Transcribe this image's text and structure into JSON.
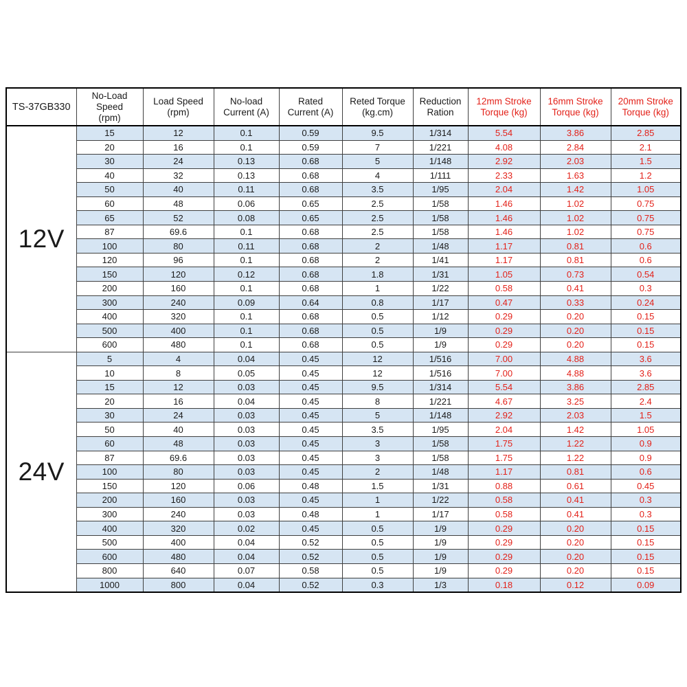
{
  "table": {
    "model": "TS-37GB330",
    "accent_red": "#e32119",
    "stripe_blue": "#d6e5f3",
    "headers": [
      "TS-37GB330",
      "No-Load\nSpeed\n(rpm)",
      "Load Speed\n(rpm)",
      "No-load\nCurrent (A)",
      "Rated\nCurrent (A)",
      "Reted Torque\n(kg.cm)",
      "Reduction\nRation",
      "12mm Stroke\nTorque (kg)",
      "16mm Stroke\nTorque (kg)",
      "20mm Stroke\nTorque (kg)"
    ],
    "red_header_start_index": 7,
    "red_value_start_col": 6,
    "sections": [
      {
        "label": "12V",
        "rows": [
          [
            "15",
            "12",
            "0.1",
            "0.59",
            "9.5",
            "1/314",
            "5.54",
            "3.86",
            "2.85"
          ],
          [
            "20",
            "16",
            "0.1",
            "0.59",
            "7",
            "1/221",
            "4.08",
            "2.84",
            "2.1"
          ],
          [
            "30",
            "24",
            "0.13",
            "0.68",
            "5",
            "1/148",
            "2.92",
            "2.03",
            "1.5"
          ],
          [
            "40",
            "32",
            "0.13",
            "0.68",
            "4",
            "1/111",
            "2.33",
            "1.63",
            "1.2"
          ],
          [
            "50",
            "40",
            "0.11",
            "0.68",
            "3.5",
            "1/95",
            "2.04",
            "1.42",
            "1.05"
          ],
          [
            "60",
            "48",
            "0.06",
            "0.65",
            "2.5",
            "1/58",
            "1.46",
            "1.02",
            "0.75"
          ],
          [
            "65",
            "52",
            "0.08",
            "0.65",
            "2.5",
            "1/58",
            "1.46",
            "1.02",
            "0.75"
          ],
          [
            "87",
            "69.6",
            "0.1",
            "0.68",
            "2.5",
            "1/58",
            "1.46",
            "1.02",
            "0.75"
          ],
          [
            "100",
            "80",
            "0.11",
            "0.68",
            "2",
            "1/48",
            "1.17",
            "0.81",
            "0.6"
          ],
          [
            "120",
            "96",
            "0.1",
            "0.68",
            "2",
            "1/41",
            "1.17",
            "0.81",
            "0.6"
          ],
          [
            "150",
            "120",
            "0.12",
            "0.68",
            "1.8",
            "1/31",
            "1.05",
            "0.73",
            "0.54"
          ],
          [
            "200",
            "160",
            "0.1",
            "0.68",
            "1",
            "1/22",
            "0.58",
            "0.41",
            "0.3"
          ],
          [
            "300",
            "240",
            "0.09",
            "0.64",
            "0.8",
            "1/17",
            "0.47",
            "0.33",
            "0.24"
          ],
          [
            "400",
            "320",
            "0.1",
            "0.68",
            "0.5",
            "1/12",
            "0.29",
            "0.20",
            "0.15"
          ],
          [
            "500",
            "400",
            "0.1",
            "0.68",
            "0.5",
            "1/9",
            "0.29",
            "0.20",
            "0.15"
          ],
          [
            "600",
            "480",
            "0.1",
            "0.68",
            "0.5",
            "1/9",
            "0.29",
            "0.20",
            "0.15"
          ]
        ]
      },
      {
        "label": "24V",
        "rows": [
          [
            "5",
            "4",
            "0.04",
            "0.45",
            "12",
            "1/516",
            "7.00",
            "4.88",
            "3.6"
          ],
          [
            "10",
            "8",
            "0.05",
            "0.45",
            "12",
            "1/516",
            "7.00",
            "4.88",
            "3.6"
          ],
          [
            "15",
            "12",
            "0.03",
            "0.45",
            "9.5",
            "1/314",
            "5.54",
            "3.86",
            "2.85"
          ],
          [
            "20",
            "16",
            "0.04",
            "0.45",
            "8",
            "1/221",
            "4.67",
            "3.25",
            "2.4"
          ],
          [
            "30",
            "24",
            "0.03",
            "0.45",
            "5",
            "1/148",
            "2.92",
            "2.03",
            "1.5"
          ],
          [
            "50",
            "40",
            "0.03",
            "0.45",
            "3.5",
            "1/95",
            "2.04",
            "1.42",
            "1.05"
          ],
          [
            "60",
            "48",
            "0.03",
            "0.45",
            "3",
            "1/58",
            "1.75",
            "1.22",
            "0.9"
          ],
          [
            "87",
            "69.6",
            "0.03",
            "0.45",
            "3",
            "1/58",
            "1.75",
            "1.22",
            "0.9"
          ],
          [
            "100",
            "80",
            "0.03",
            "0.45",
            "2",
            "1/48",
            "1.17",
            "0.81",
            "0.6"
          ],
          [
            "150",
            "120",
            "0.06",
            "0.48",
            "1.5",
            "1/31",
            "0.88",
            "0.61",
            "0.45"
          ],
          [
            "200",
            "160",
            "0.03",
            "0.45",
            "1",
            "1/22",
            "0.58",
            "0.41",
            "0.3"
          ],
          [
            "300",
            "240",
            "0.03",
            "0.48",
            "1",
            "1/17",
            "0.58",
            "0.41",
            "0.3"
          ],
          [
            "400",
            "320",
            "0.02",
            "0.45",
            "0.5",
            "1/9",
            "0.29",
            "0.20",
            "0.15"
          ],
          [
            "500",
            "400",
            "0.04",
            "0.52",
            "0.5",
            "1/9",
            "0.29",
            "0.20",
            "0.15"
          ],
          [
            "600",
            "480",
            "0.04",
            "0.52",
            "0.5",
            "1/9",
            "0.29",
            "0.20",
            "0.15"
          ],
          [
            "800",
            "640",
            "0.07",
            "0.58",
            "0.5",
            "1/9",
            "0.29",
            "0.20",
            "0.15"
          ],
          [
            "1000",
            "800",
            "0.04",
            "0.52",
            "0.3",
            "1/3",
            "0.18",
            "0.12",
            "0.09"
          ]
        ]
      }
    ]
  }
}
